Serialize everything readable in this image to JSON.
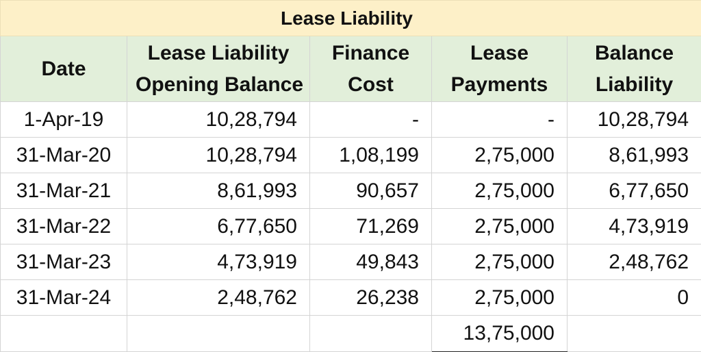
{
  "title": "Lease Liability",
  "columns": [
    {
      "line1": "Date",
      "line2": ""
    },
    {
      "line1": "Lease Liability",
      "line2": "Opening Balance"
    },
    {
      "line1": "Finance",
      "line2": "Cost"
    },
    {
      "line1": "Lease",
      "line2": "Payments"
    },
    {
      "line1": "Balance",
      "line2": "Liability"
    }
  ],
  "rows": [
    [
      "1-Apr-19",
      "10,28,794",
      "-",
      "-",
      "10,28,794"
    ],
    [
      "31-Mar-20",
      "10,28,794",
      "1,08,199",
      "2,75,000",
      "8,61,993"
    ],
    [
      "31-Mar-21",
      "8,61,993",
      "90,657",
      "2,75,000",
      "6,77,650"
    ],
    [
      "31-Mar-22",
      "6,77,650",
      "71,269",
      "2,75,000",
      "4,73,919"
    ],
    [
      "31-Mar-23",
      "4,73,919",
      "49,843",
      "2,75,000",
      "2,48,762"
    ],
    [
      "31-Mar-24",
      "2,48,762",
      "26,238",
      "2,75,000",
      "0"
    ]
  ],
  "total_lease_payments": "13,75,000",
  "colors": {
    "title_bg": "#fdf0c8",
    "header_bg": "#e2efda",
    "grid": "#d4d4d4"
  }
}
